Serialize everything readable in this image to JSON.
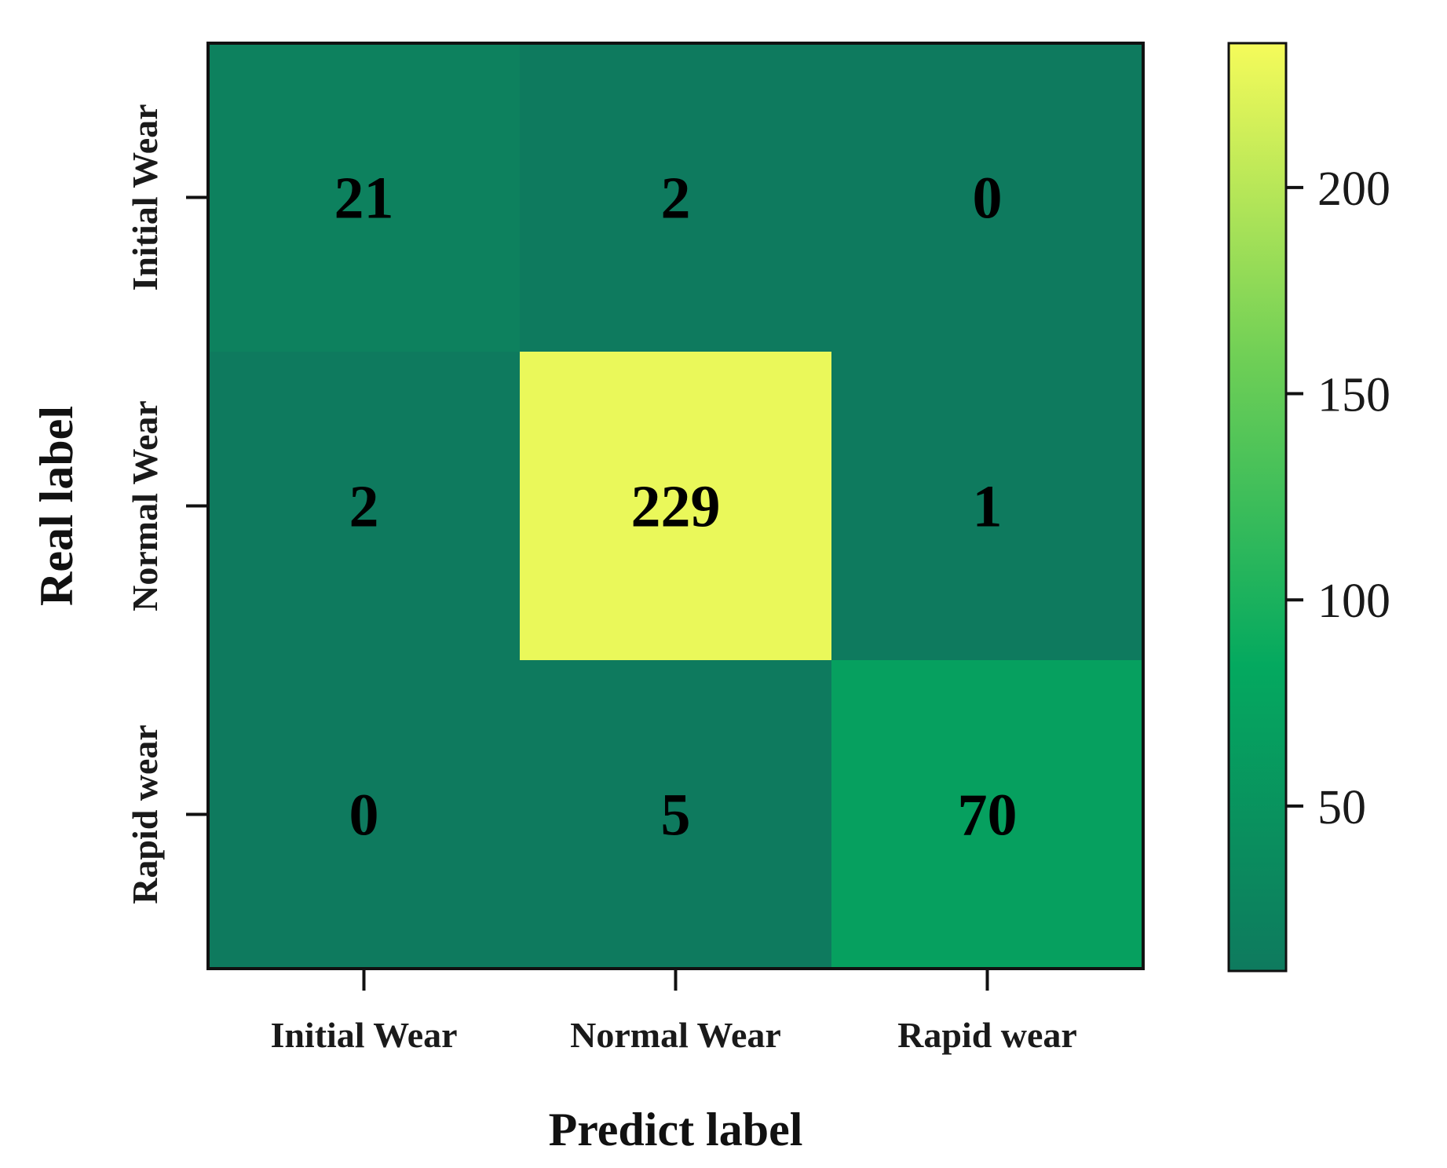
{
  "chart_data": {
    "type": "heatmap",
    "title": "",
    "xlabel": "Predict label",
    "ylabel": "Real label",
    "x_categories": [
      "Initial Wear",
      "Normal Wear",
      "Rapid wear"
    ],
    "y_categories": [
      "Initial Wear",
      "Normal Wear",
      "Rapid wear"
    ],
    "values": [
      [
        21,
        2,
        0
      ],
      [
        2,
        229,
        1
      ],
      [
        0,
        5,
        70
      ]
    ],
    "colorbar": {
      "range": [
        10,
        235
      ],
      "ticks": [
        50,
        100,
        150,
        200
      ],
      "colors": {
        "low": "#0e7a5e",
        "mid": "#04a95f",
        "high": "#f5fb5a"
      }
    },
    "grid": false,
    "legend": "colorbar-right"
  }
}
